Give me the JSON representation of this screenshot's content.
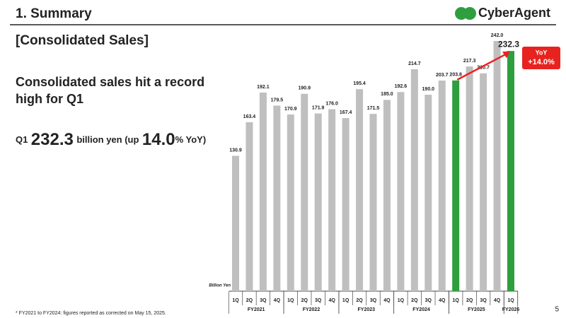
{
  "header": {
    "title": "1. Summary",
    "logo": "CyberAgent"
  },
  "section_title": "[Consolidated Sales]",
  "headline": "Consolidated sales hit a record high for Q1",
  "summary": {
    "period": "Q1",
    "amount": "232.3",
    "middle": "billion yen (up",
    "growth": "14.0",
    "tail": "% YoY)"
  },
  "chart_data": {
    "type": "bar",
    "unit_label": "Billion Yen",
    "color": "#bfbfbf",
    "groups": [
      {
        "name": "FY2021",
        "categories": [
          "1Q",
          "2Q",
          "3Q",
          "4Q"
        ],
        "values": [
          130.9,
          163.4,
          192.1,
          179.5
        ],
        "value_labels": [
          "130.9",
          "163.4",
          "192.1",
          "179.5"
        ],
        "colors": [
          "#bfbfbf",
          "#bfbfbf",
          "#bfbfbf",
          "#bfbfbf"
        ]
      },
      {
        "name": "FY2022",
        "categories": [
          "1Q",
          "2Q",
          "3Q",
          "4Q"
        ],
        "values": [
          170.9,
          190.9,
          171.9,
          176.0
        ],
        "value_labels": [
          "170.9",
          "190.9",
          "171.9",
          "176.0"
        ],
        "colors": [
          "#bfbfbf",
          "#bfbfbf",
          "#bfbfbf",
          "#bfbfbf"
        ]
      },
      {
        "name": "FY2023",
        "categories": [
          "1Q",
          "2Q",
          "3Q",
          "4Q"
        ],
        "values": [
          167.4,
          195.4,
          171.5,
          185.0
        ],
        "value_labels": [
          "167.4",
          "195.4",
          "171.5",
          "185.0"
        ],
        "colors": [
          "#bfbfbf",
          "#bfbfbf",
          "#bfbfbf",
          "#bfbfbf"
        ]
      },
      {
        "name": "FY2024",
        "categories": [
          "1Q",
          "2Q",
          "3Q",
          "4Q"
        ],
        "values": [
          192.6,
          214.7,
          190.0,
          203.7
        ],
        "value_labels": [
          "192.6",
          "214.7",
          "190.0",
          "203.7"
        ],
        "colors": [
          "#bfbfbf",
          "#bfbfbf",
          "#bfbfbf",
          "#bfbfbf"
        ]
      },
      {
        "name": "FY2025",
        "categories": [
          "1Q",
          "2Q",
          "3Q",
          "4Q"
        ],
        "values": [
          203.8,
          217.3,
          210.7,
          242.0
        ],
        "value_labels": [
          "203.8",
          "217.3",
          "210.7",
          "242.0"
        ],
        "colors": [
          "#2e9e3e",
          "#bfbfbf",
          "#bfbfbf",
          "#bfbfbf"
        ]
      },
      {
        "name": "FY2026",
        "categories": [
          "1Q"
        ],
        "values": [
          232.3
        ],
        "value_labels": [
          "232.3"
        ],
        "colors": [
          "#2e9e3e"
        ]
      }
    ],
    "annotation": {
      "label": "YoY",
      "value": "+14.0%",
      "color": "#e8231f"
    }
  },
  "footnote": "* FY2021 to FY2024: figures reported as corrected on May 15, 2025.",
  "page_number": "5"
}
